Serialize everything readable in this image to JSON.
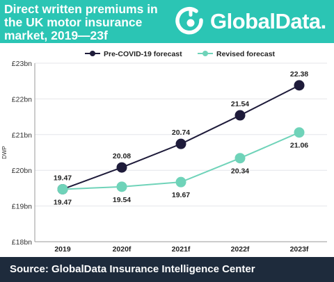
{
  "header": {
    "title_lines": [
      "Direct written premiums in",
      "the UK motor insurance",
      "market, 2019—23f"
    ],
    "logo_text": "GlobalData.",
    "logo_icon": "globaldata-logo-icon",
    "background_color": "#2bc5b4"
  },
  "footer": {
    "source": "Source: GlobalData Insurance Intelligence Center",
    "background_color": "#1e2b3c"
  },
  "chart_data": {
    "type": "line",
    "title": "Direct written premiums in the UK motor insurance market, 2019—23f",
    "xlabel": "",
    "ylabel": "DWP",
    "categories": [
      "2019",
      "2020f",
      "2021f",
      "2022f",
      "2023f"
    ],
    "y_ticks": [
      "£18bn",
      "£19bn",
      "£20bn",
      "£21bn",
      "£22bn",
      "£23bn"
    ],
    "ylim": [
      18,
      23
    ],
    "grid": true,
    "legend_position": "top",
    "series": [
      {
        "name": "Pre-COVID-19 forecast",
        "color": "#1e1b3a",
        "values": [
          19.47,
          20.08,
          20.74,
          21.54,
          22.38
        ],
        "labels": [
          "19.47",
          "20.08",
          "20.74",
          "21.54",
          "22.38"
        ]
      },
      {
        "name": "Revised forecast",
        "color": "#6fd3b9",
        "values": [
          19.47,
          19.54,
          19.67,
          20.34,
          21.06
        ],
        "labels": [
          "19.47",
          "19.54",
          "19.67",
          "20.34",
          "21.06"
        ]
      }
    ]
  }
}
